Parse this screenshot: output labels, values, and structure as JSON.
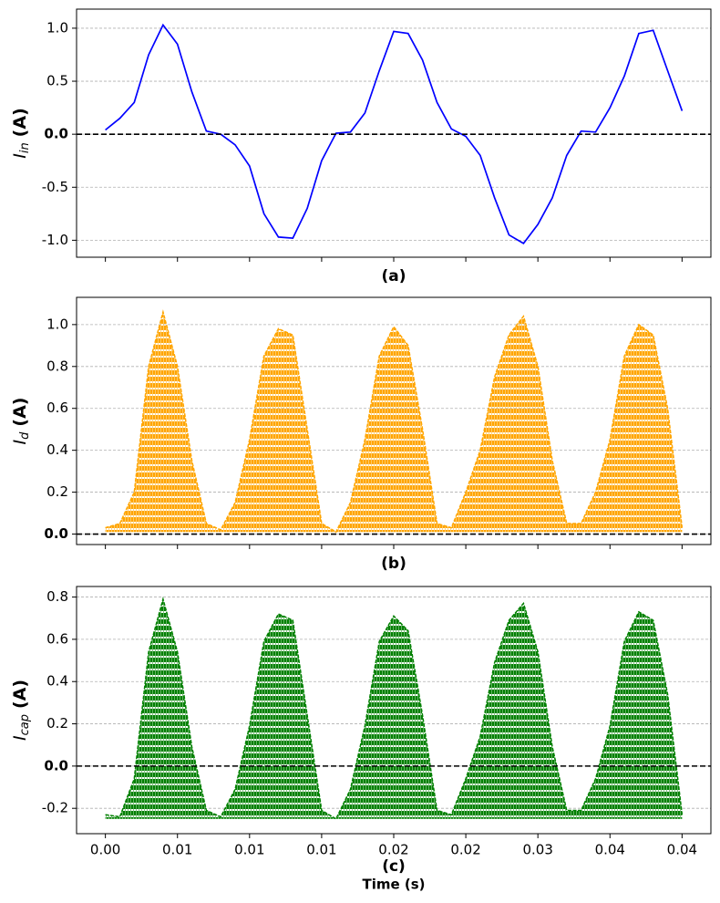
{
  "chart_data": [
    {
      "type": "line",
      "caption": "(a)",
      "ylabel": "I",
      "ylabel_sub": "in",
      "ylabel_unit": "(A)",
      "x": [
        0,
        0.001,
        0.002,
        0.003,
        0.004,
        0.005,
        0.006,
        0.007,
        0.008,
        0.009,
        0.01,
        0.011,
        0.012,
        0.013,
        0.014,
        0.015,
        0.016,
        0.017,
        0.018,
        0.019,
        0.02,
        0.021,
        0.022,
        0.023,
        0.024,
        0.025,
        0.026,
        0.027,
        0.028,
        0.029,
        0.03,
        0.031,
        0.032,
        0.033,
        0.034,
        0.035,
        0.036,
        0.037,
        0.038,
        0.039,
        0.04
      ],
      "values": [
        0.04,
        0.15,
        0.3,
        0.75,
        1.03,
        0.85,
        0.4,
        0.03,
        0.0,
        -0.1,
        -0.3,
        -0.75,
        -0.97,
        -0.98,
        -0.7,
        -0.25,
        0.01,
        0.02,
        0.2,
        0.6,
        0.97,
        0.95,
        0.7,
        0.3,
        0.05,
        -0.02,
        -0.2,
        -0.6,
        -0.95,
        -1.03,
        -0.85,
        -0.6,
        -0.2,
        0.03,
        0.02,
        0.25,
        0.55,
        0.95,
        0.98,
        0.6,
        0.22
      ],
      "color": "#0000ff",
      "ylim": [
        -1.16,
        1.18
      ],
      "yticks": [
        {
          "value": -1,
          "label": "-1.0"
        },
        {
          "value": -0.5,
          "label": "-0.5"
        },
        {
          "value": 0,
          "label": "0.0"
        },
        {
          "value": 0.5,
          "label": "0.5"
        },
        {
          "value": 1,
          "label": "1.0"
        }
      ],
      "grid": true,
      "reference_line": 0
    },
    {
      "type": "area",
      "caption": "(b)",
      "ylabel": "I",
      "ylabel_sub": "d",
      "ylabel_unit": "(A)",
      "x": [
        0,
        0.001,
        0.002,
        0.003,
        0.004,
        0.005,
        0.006,
        0.007,
        0.008,
        0.009,
        0.01,
        0.011,
        0.012,
        0.013,
        0.014,
        0.015,
        0.016,
        0.017,
        0.018,
        0.019,
        0.02,
        0.021,
        0.022,
        0.023,
        0.024,
        0.025,
        0.026,
        0.027,
        0.028,
        0.029,
        0.03,
        0.031,
        0.032,
        0.033,
        0.034,
        0.035,
        0.036,
        0.037,
        0.038,
        0.039,
        0.04
      ],
      "values": [
        0.03,
        0.05,
        0.2,
        0.8,
        1.06,
        0.8,
        0.35,
        0.05,
        0.02,
        0.15,
        0.45,
        0.85,
        0.98,
        0.95,
        0.5,
        0.05,
        0.01,
        0.15,
        0.45,
        0.85,
        0.99,
        0.9,
        0.5,
        0.05,
        0.03,
        0.2,
        0.4,
        0.75,
        0.95,
        1.04,
        0.8,
        0.35,
        0.05,
        0.05,
        0.2,
        0.45,
        0.85,
        1.0,
        0.95,
        0.6,
        0.03
      ],
      "color": "#ffa500",
      "ylim": [
        -0.05,
        1.13
      ],
      "yticks": [
        {
          "value": 0,
          "label": "0.0"
        },
        0.2,
        0.4,
        0.6,
        0.8,
        {
          "value": 1,
          "label": "1.0"
        }
      ],
      "grid": true,
      "reference_line": 0
    },
    {
      "type": "area",
      "caption": "(c)",
      "ylabel": "I",
      "ylabel_sub": "cap",
      "ylabel_unit": "(A)",
      "xlabel": "Time (s)",
      "x": [
        0,
        0.001,
        0.002,
        0.003,
        0.004,
        0.005,
        0.006,
        0.007,
        0.008,
        0.009,
        0.01,
        0.011,
        0.012,
        0.013,
        0.014,
        0.015,
        0.016,
        0.017,
        0.018,
        0.019,
        0.02,
        0.021,
        0.022,
        0.023,
        0.024,
        0.025,
        0.026,
        0.027,
        0.028,
        0.029,
        0.03,
        0.031,
        0.032,
        0.033,
        0.034,
        0.035,
        0.036,
        0.037,
        0.038,
        0.039,
        0.04
      ],
      "values": [
        -0.23,
        -0.24,
        -0.06,
        0.54,
        0.79,
        0.54,
        0.09,
        -0.21,
        -0.24,
        -0.11,
        0.19,
        0.59,
        0.72,
        0.69,
        0.24,
        -0.21,
        -0.25,
        -0.11,
        0.19,
        0.59,
        0.71,
        0.64,
        0.24,
        -0.21,
        -0.23,
        -0.06,
        0.14,
        0.49,
        0.69,
        0.77,
        0.54,
        0.09,
        -0.21,
        -0.21,
        -0.06,
        0.19,
        0.59,
        0.73,
        0.69,
        0.34,
        -0.23
      ],
      "color": "#008000",
      "ylim": [
        -0.32,
        0.85
      ],
      "yticks": [
        -0.2,
        {
          "value": 0,
          "label": "0.0"
        },
        0.2,
        0.4,
        0.6,
        0.8
      ],
      "grid": true,
      "reference_line": 0,
      "xlim": [
        -0.002,
        0.042
      ],
      "xticks": [
        {
          "value": 0,
          "label": "0.00"
        },
        {
          "value": 0.005,
          "label": "0.01"
        },
        {
          "value": 0.01,
          "label": "0.01"
        },
        {
          "value": 0.015,
          "label": "0.01"
        },
        {
          "value": 0.02,
          "label": "0.02"
        },
        {
          "value": 0.025,
          "label": "0.02"
        },
        {
          "value": 0.03,
          "label": "0.03"
        },
        {
          "value": 0.035,
          "label": "0.04"
        },
        {
          "value": 0.04,
          "label": "0.04"
        }
      ]
    }
  ]
}
